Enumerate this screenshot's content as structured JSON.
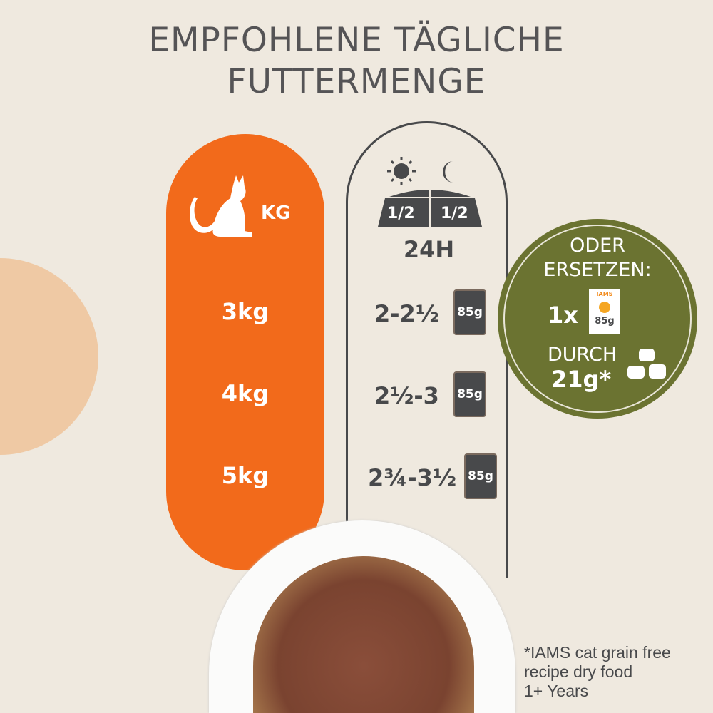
{
  "title": {
    "line1": "EMPFOHLENE TÄGLICHE",
    "line2": "FUTTERMENGE"
  },
  "weight_column": {
    "unit_label": "KG",
    "rows": [
      "3kg",
      "4kg",
      "5kg"
    ]
  },
  "portion_column": {
    "bowl_split": [
      "1/2",
      "1/2"
    ],
    "period": "24H",
    "rows": [
      "2-2½",
      "2½-3",
      "2¾-3½"
    ],
    "pouch_label": "85g"
  },
  "replace_badge": {
    "line1": "ODER",
    "line2": "ERSETZEN:",
    "qty": "1x",
    "bag_brand": "IAMS",
    "bag_weight": "85g",
    "line3": "DURCH",
    "amount": "21g*"
  },
  "footnote": [
    "*IAMS cat grain free",
    "recipe dry food",
    "1+ Years"
  ],
  "colors": {
    "background": "#efe9df",
    "orange": "#f26a1b",
    "olive": "#6b7331",
    "dark": "#48494b",
    "peach": "#efc9a4"
  }
}
